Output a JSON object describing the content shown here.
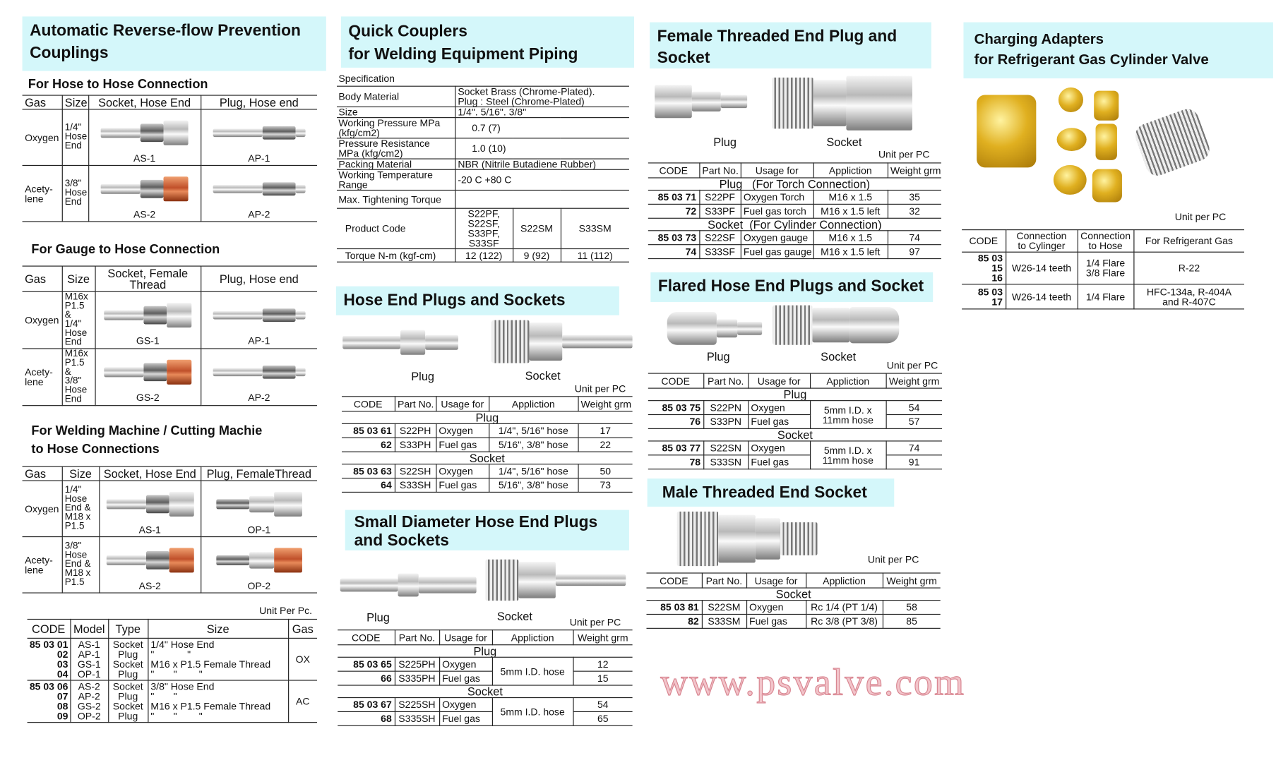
{
  "watermark": "www.psvalve.com",
  "col1": {
    "title": "Automatic Reverse-flow Prevention\nCouplings",
    "hose_to_hose": {
      "heading": "For Hose to Hose Connection",
      "headers": [
        "Gas",
        "Size",
        "Socket, Hose End",
        "Plug, Hose end"
      ],
      "rows": [
        {
          "gas": "Oxygen",
          "size": "1/4\"\nHose\nEnd",
          "socket": "AS-1",
          "plug": "AP-1",
          "nut": "silver"
        },
        {
          "gas": "Acety-\nlene",
          "size": "3/8\"\nHose\nEnd",
          "socket": "AS-2",
          "plug": "AP-2",
          "nut": "copper"
        }
      ]
    },
    "gauge_to_hose": {
      "heading": "For Gauge to Hose Connection",
      "headers": [
        "Gas",
        "Size",
        "Socket, Female\nThread",
        "Plug, Hose end"
      ],
      "rows": [
        {
          "gas": "Oxygen",
          "size": "M16x\nP1.5 &\n1/4\"\nHose\nEnd",
          "socket": "GS-1",
          "plug": "AP-1",
          "nut": "silver"
        },
        {
          "gas": "Acety-\nlene",
          "size": "M16x\nP1.5 &\n3/8\"\nHose\nEnd",
          "socket": "GS-2",
          "plug": "AP-2",
          "nut": "copper"
        }
      ]
    },
    "welding": {
      "heading": "For Welding Machine / Cutting Machie\nto Hose Connections",
      "headers": [
        "Gas",
        "Size",
        "Socket, Hose End",
        "Plug, FemaleThread"
      ],
      "rows": [
        {
          "gas": "Oxygen",
          "size": "1/4\"\nHose\nEnd &\nM18 x\nP1.5",
          "socket": "AS-1",
          "plug": "OP-1",
          "nut": "silver"
        },
        {
          "gas": "Acety-\nlene",
          "size": "3/8\"\nHose\nEnd &\nM18 x\nP1.5",
          "socket": "AS-2",
          "plug": "OP-2",
          "nut": "copper"
        }
      ]
    },
    "unit": "Unit Per Pc.",
    "codes": {
      "headers": [
        "CODE",
        "Model",
        "Type",
        "Size",
        "Gas"
      ],
      "rows": [
        [
          "85 03 01\n02\n03\n04",
          "AS-1\nAP-1\nGS-1\nOP-1",
          "Socket\nPlug\nSocket\nPlug",
          "1/4\" Hose End\n\"            \"\nM16 x P1.5 Female Thread\n\"       \"        \"",
          "OX"
        ],
        [
          "85 03 06\n07\n08\n09",
          "AS-2\nAP-2\nGS-2\nOP-2",
          "Socket\nPlug\nSocket\nPlug",
          "3/8\" Hose End\n\"       \"\nM16 x P1.5 Female Thread\n\"       \"        \"",
          "AC"
        ]
      ]
    }
  },
  "col2": {
    "title": "Quick Couplers\nfor Welding Equipment Piping",
    "spec_label": "Specification",
    "spec": [
      [
        "Body Material",
        "Socket Brass (Chrome-Plated).\nPlug : Steel (Chrome-Plated)"
      ],
      [
        "Size",
        "1/4\". 5/16\". 3/8\""
      ],
      [
        "Working Pressure MPa\n(kfg/cm2)",
        "0.7 (7)"
      ],
      [
        "Pressure Resistance\nMPa (kfg/cm2)",
        "1.0 (10)"
      ],
      [
        "Packing Material",
        "NBR (Nitrile Butadiene Rubber)"
      ],
      [
        "Working Temperature\nRange",
        "-20 C  +80  C"
      ],
      [
        "Max. Tightening Torque",
        ""
      ]
    ],
    "torque": {
      "product_code_label": "Product Code",
      "torque_label": "Torque N-m (kgf-cm)",
      "codes": [
        "S22PF, S22SF,\nS33PF, S33SF",
        "S22SM",
        "S33SM"
      ],
      "values": [
        "12 (122)",
        "9 (92)",
        "11 (112)"
      ]
    },
    "hose_end": {
      "title": "Hose End Plugs and Sockets",
      "plug_label": "Plug",
      "socket_label": "Socket",
      "unit": "Unit per PC",
      "headers": [
        "CODE",
        "Part No.",
        "Usage for",
        "Appliction",
        "Weight grm"
      ],
      "groups": [
        {
          "label": "Plug",
          "rows": [
            [
              "85 03 61",
              "S22PH",
              "Oxygen",
              "1/4\", 5/16\" hose",
              "17"
            ],
            [
              "62",
              "S33PH",
              "Fuel gas",
              "5/16\", 3/8\" hose",
              "22"
            ]
          ]
        },
        {
          "label": "Socket",
          "rows": [
            [
              "85 03 63",
              "S22SH",
              "Oxygen",
              "1/4\", 5/16\" hose",
              "50"
            ],
            [
              "64",
              "S33SH",
              "Fuel gas",
              "5/16\", 3/8\" hose",
              "73"
            ]
          ]
        }
      ]
    },
    "small_diameter": {
      "title": "Small Diameter Hose End Plugs\nand Sockets",
      "plug_label": "Plug",
      "socket_label": "Socket",
      "unit": "Unit per PC",
      "headers": [
        "CODE",
        "Part No.",
        "Usage for",
        "Appliction",
        "Weight grm"
      ],
      "groups": [
        {
          "label": "Plug",
          "merge": 3,
          "rows": [
            [
              "85 03 65",
              "S225PH",
              "Oxygen",
              "5mm I.D. hose",
              "12"
            ],
            [
              "66",
              "S335PH",
              "Fuel gas",
              "",
              "15"
            ]
          ]
        },
        {
          "label": "Socket",
          "merge": 3,
          "rows": [
            [
              "85 03 67",
              "S225SH",
              "Oxygen",
              "5mm I.D. hose",
              "54"
            ],
            [
              "68",
              "S335SH",
              "Fuel gas",
              "",
              "65"
            ]
          ]
        }
      ]
    }
  },
  "col3": {
    "female": {
      "title": "Female Threaded End Plug and\nSocket",
      "plug_label": "Plug",
      "socket_label": "Socket",
      "unit": "Unit per PC",
      "headers": [
        "CODE",
        "Part No.",
        "Usage for",
        "Appliction",
        "Weight grm"
      ],
      "groups": [
        {
          "label": "Plug   (For Torch Connection)",
          "rows": [
            [
              "85 03 71",
              "S22PF",
              "Oxygen Torch",
              "M16 x 1.5",
              "35"
            ],
            [
              "72",
              "S33PF",
              "Fuel gas torch",
              "M16 x 1.5 left",
              "32"
            ]
          ]
        },
        {
          "label": "Socket  (For Cylinder Connection)",
          "rows": [
            [
              "85 03 73",
              "S22SF",
              "Oxygen gauge",
              "M16 x 1.5",
              "74"
            ],
            [
              "74",
              "S33SF",
              "Fuel gas gauge",
              "M16 x 1.5 left",
              "97"
            ]
          ]
        }
      ]
    },
    "flared": {
      "title": "Flared Hose End Plugs and Socket",
      "plug_label": "Plug",
      "socket_label": "Socket",
      "unit": "Unit per PC",
      "headers": [
        "CODE",
        "Part No.",
        "Usage for",
        "Appliction",
        "Weight grm"
      ],
      "groups": [
        {
          "label": "Plug",
          "merge": 3,
          "rows": [
            [
              "85 03 75",
              "S22PN",
              "Oxygen",
              "5mm I.D. x\n11mm hose",
              "54"
            ],
            [
              "76",
              "S33PN",
              "Fuel gas",
              "",
              "57"
            ]
          ]
        },
        {
          "label": "Socket",
          "merge": 3,
          "rows": [
            [
              "85 03 77",
              "S22SN",
              "Oxygen",
              "5mm I.D. x\n11mm hose",
              "74"
            ],
            [
              "78",
              "S33SN",
              "Fuel gas",
              "",
              "91"
            ]
          ]
        }
      ]
    },
    "male": {
      "title": "Male Threaded End Socket",
      "unit": "Unit per PC",
      "headers": [
        "CODE",
        "Part No.",
        "Usage for",
        "Appliction",
        "Weight grm"
      ],
      "groups": [
        {
          "label": "Socket",
          "rows": [
            [
              "85 03 81",
              "S22SM",
              "Oxygen",
              "Rc 1/4 (PT 1/4)",
              "58"
            ],
            [
              "82",
              "S33SM",
              "Fuel gas",
              "Rc 3/8 (PT 3/8)",
              "85"
            ]
          ]
        }
      ]
    }
  },
  "col4": {
    "title": "Charging Adapters\nfor Refrigerant Gas Cylinder Valve",
    "unit": "Unit per PC",
    "headers": [
      "CODE",
      "Connection\nto Cylinger",
      "Connection\nto Hose",
      "For Refrigerant Gas"
    ],
    "rows": [
      [
        "85 03 15\n16",
        "W26-14 teeth",
        "1/4 Flare\n3/8 Flare",
        "R-22"
      ],
      [
        "85 03 17",
        "W26-14 teeth",
        "1/4 Flare",
        "HFC-134a, R-404A\nand R-407C"
      ]
    ]
  }
}
